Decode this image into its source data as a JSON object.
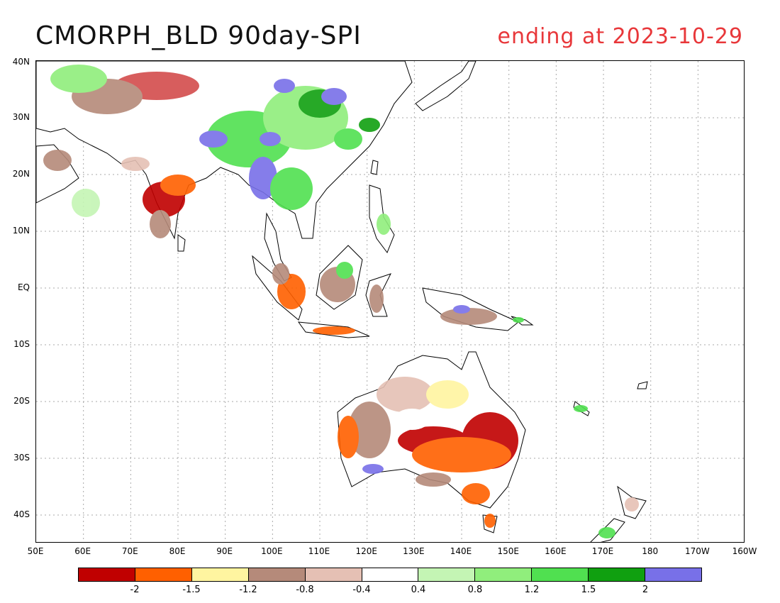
{
  "title": "CMORPH_BLD 90day-SPI",
  "subtitle": "ending at 2023-10-29",
  "lat_labels": [
    "40N",
    "30N",
    "20N",
    "10N",
    "EQ",
    "10S",
    "20S",
    "30S",
    "40S"
  ],
  "lon_labels": [
    "50E",
    "60E",
    "70E",
    "80E",
    "90E",
    "100E",
    "110E",
    "120E",
    "130E",
    "140E",
    "150E",
    "160E",
    "170E",
    "180",
    "170W",
    "160W"
  ],
  "legend": {
    "colors": [
      "#c00000",
      "#ff6000",
      "#fff5a0",
      "#b58a7a",
      "#e5c0b4",
      "#ffffff",
      "#c4f5b4",
      "#90ee7c",
      "#50e050",
      "#10a010",
      "#7870e8"
    ],
    "labels": [
      "-2",
      "-1.5",
      "-1.2",
      "-0.8",
      "-0.4",
      "0.4",
      "0.8",
      "1.2",
      "1.5",
      "2"
    ]
  }
}
